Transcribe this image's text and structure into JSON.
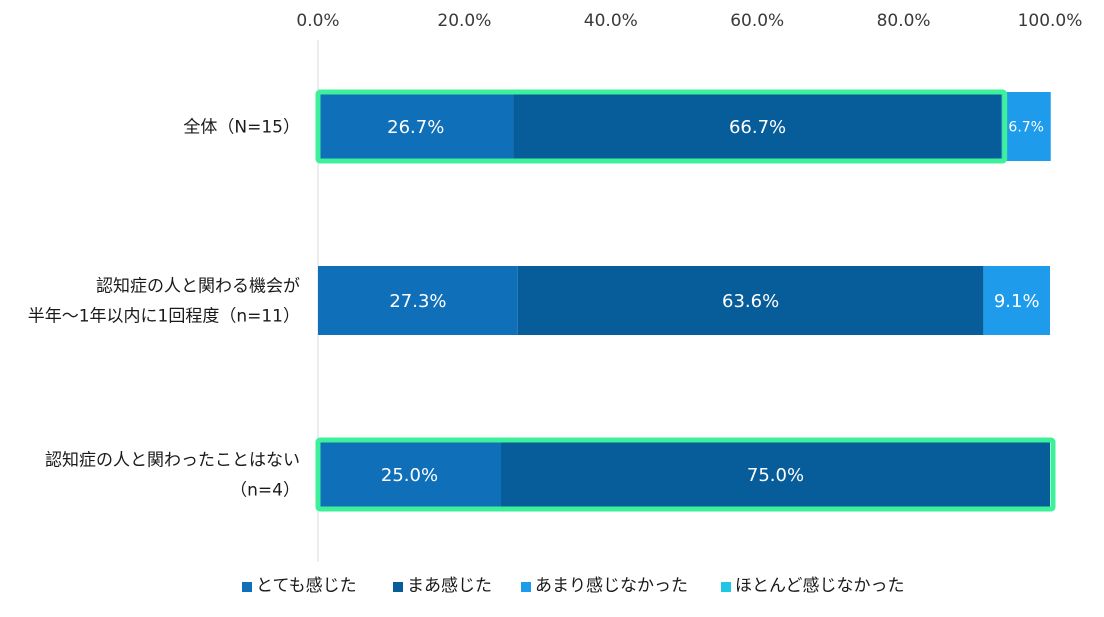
{
  "chart_data": {
    "type": "bar",
    "orientation": "horizontal",
    "stacked": true,
    "xlim": [
      0,
      100
    ],
    "x_ticks": [
      "0.0%",
      "20.0%",
      "40.0%",
      "60.0%",
      "80.0%",
      "100.0%"
    ],
    "x_axis_position": "top",
    "categories": [
      {
        "lines": [
          "全体（N=15）"
        ],
        "highlighted": true
      },
      {
        "lines": [
          "認知症の人と関わる機会が",
          "半年～1年以内に1回程度（n=11）"
        ],
        "highlighted": false
      },
      {
        "lines": [
          "認知症の人と関わったことはない",
          "（n=4）"
        ],
        "highlighted": true
      }
    ],
    "series": [
      {
        "name": "とても感じた",
        "color": "#0F6FB8",
        "values": [
          26.7,
          27.3,
          25.0
        ],
        "labels": [
          "26.7%",
          "27.3%",
          "25.0%"
        ]
      },
      {
        "name": "まあ感じた",
        "color": "#075D99",
        "values": [
          66.7,
          63.6,
          75.0
        ],
        "labels": [
          "66.7%",
          "63.6%",
          "75.0%"
        ]
      },
      {
        "name": "あまり感じなかった",
        "color": "#1E9BEA",
        "values": [
          6.7,
          9.1,
          0
        ],
        "labels": [
          "6.7%",
          "9.1%",
          ""
        ]
      },
      {
        "name": "ほとんど感じなかった",
        "color": "#1FC7E4",
        "values": [
          0,
          0,
          0
        ],
        "labels": [
          "",
          "",
          ""
        ]
      }
    ],
    "legend_position": "bottom",
    "highlight_color": "#3DF09A",
    "grid": false
  }
}
